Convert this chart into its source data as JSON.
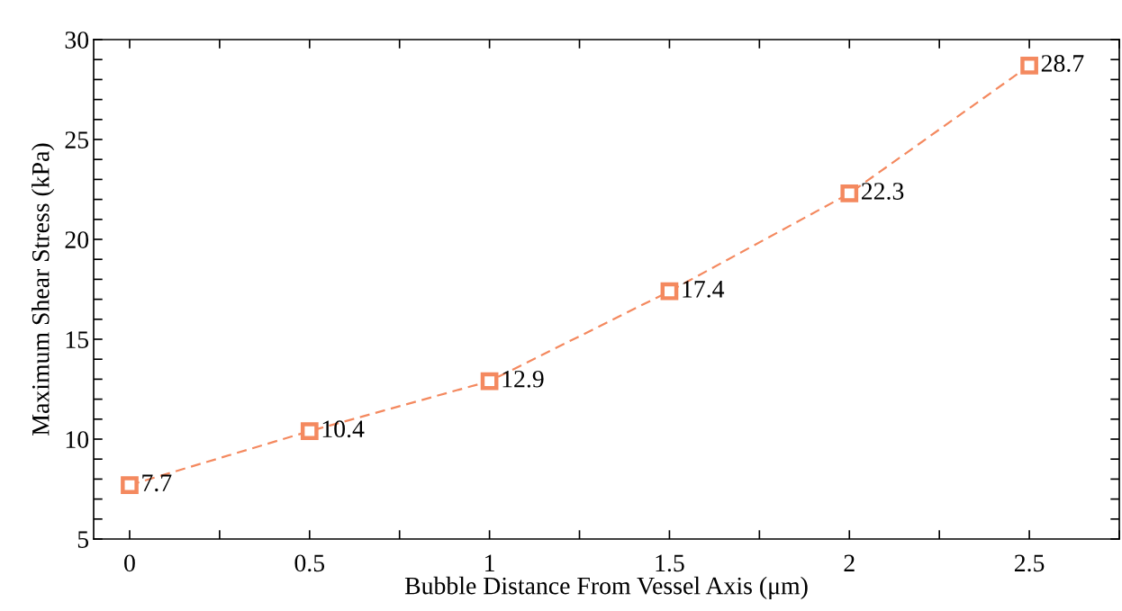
{
  "chart_data": {
    "type": "line",
    "xlabel": "Bubble Distance From Vessel Axis (μm)",
    "ylabel": "Maximum Shear Stress (kPa)",
    "x": [
      0,
      0.5,
      1,
      1.5,
      2,
      2.5
    ],
    "series": [
      {
        "color": "#f4895f",
        "values": [
          7.7,
          10.4,
          12.9,
          17.4,
          22.3,
          28.7
        ]
      }
    ],
    "xlim": [
      -0.1,
      2.75
    ],
    "ylim": [
      5,
      30
    ],
    "xticks": [
      0,
      {
        "value": 0.25,
        "label": null
      },
      0.5,
      {
        "value": 0.75,
        "label": null
      },
      1,
      {
        "value": 1.25,
        "label": null
      },
      1.5,
      {
        "value": 1.75,
        "label": null
      },
      2,
      {
        "value": 2.25,
        "label": null
      },
      2.5,
      {
        "value": 2.75,
        "label": null
      }
    ],
    "yticks": [
      5,
      {
        "value": 6,
        "label": null
      },
      {
        "value": 7,
        "label": null
      },
      {
        "value": 8,
        "label": null
      },
      {
        "value": 9,
        "label": null
      },
      10,
      {
        "value": 11,
        "label": null
      },
      {
        "value": 12,
        "label": null
      },
      {
        "value": 13,
        "label": null
      },
      {
        "value": 14,
        "label": null
      },
      15,
      {
        "value": 16,
        "label": null
      },
      {
        "value": 17,
        "label": null
      },
      {
        "value": 18,
        "label": null
      },
      {
        "value": 19,
        "label": null
      },
      20,
      {
        "value": 21,
        "label": null
      },
      {
        "value": 22,
        "label": null
      },
      {
        "value": 23,
        "label": null
      },
      {
        "value": 24,
        "label": null
      },
      25,
      {
        "value": 26,
        "label": null
      },
      {
        "value": 27,
        "label": null
      },
      {
        "value": 28,
        "label": null
      },
      {
        "value": 29,
        "label": null
      },
      30
    ],
    "marker": "square",
    "line_style": "dashed",
    "data_labels": true,
    "grid": false
  }
}
